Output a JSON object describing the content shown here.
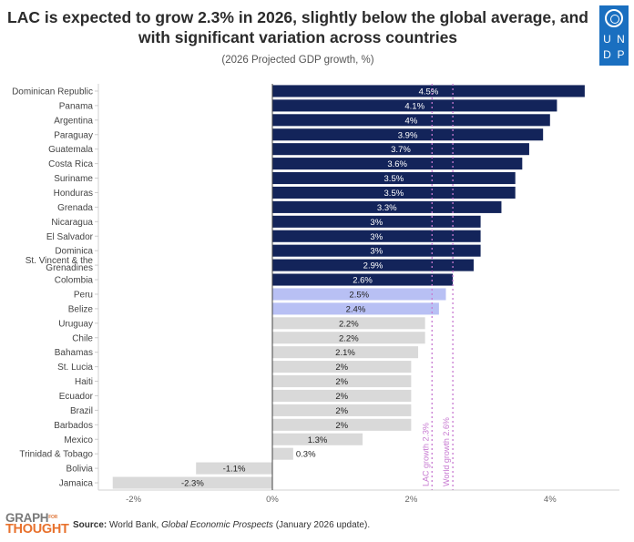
{
  "header": {
    "title_line1": "LAC is expected to grow 2.3% in 2026, slightly below the global average, and",
    "title_line2": "with significant variation across countries",
    "subtitle": "(2026 Projected GDP growth, %)"
  },
  "logo": {
    "org_letters": [
      "U",
      "N",
      "D",
      "P"
    ],
    "footer_brand_top": "GRAPH",
    "footer_brand_small": "FOR",
    "footer_brand_bottom": "THOUGHT"
  },
  "footer": {
    "source_label": "Source:",
    "source_prefix": " World Bank, ",
    "source_title": "Global Economic Prospects",
    "source_suffix": " (January 2026 update)."
  },
  "colors": {
    "above_world": "#13245a",
    "between": "#b8c0f4",
    "below_lac": "#d9d9d9",
    "reference_line": "#c77ad1",
    "label_dark_bg": "#ffffff",
    "label_light_bg": "#222222"
  },
  "chart_data": {
    "type": "bar",
    "orientation": "horizontal",
    "title": "LAC is expected to grow 2.3% in 2026, slightly below the global average, and with significant variation across countries",
    "subtitle": "(2026 Projected GDP growth, %)",
    "xlabel": "",
    "ylabel": "",
    "xlim": [
      -2.4,
      4.9
    ],
    "xticks": [
      -2,
      0,
      2,
      4
    ],
    "xtick_labels": [
      "-2%",
      "0%",
      "2%",
      "4%"
    ],
    "grid": false,
    "categories": [
      "Dominican Republic",
      "Panama",
      "Argentina",
      "Paraguay",
      "Guatemala",
      "Costa Rica",
      "Suriname",
      "Honduras",
      "Grenada",
      "Nicaragua",
      "El Salvador",
      "Dominica",
      "St. Vincent & the Grenadines",
      "Colombia",
      "Peru",
      "Belize",
      "Uruguay",
      "Chile",
      "Bahamas",
      "St. Lucia",
      "Haiti",
      "Ecuador",
      "Brazil",
      "Barbados",
      "Mexico",
      "Trinidad & Tobago",
      "Bolivia",
      "Jamaica"
    ],
    "values": [
      4.5,
      4.1,
      4.0,
      3.9,
      3.7,
      3.6,
      3.5,
      3.5,
      3.3,
      3.0,
      3.0,
      3.0,
      2.9,
      2.6,
      2.5,
      2.4,
      2.2,
      2.2,
      2.1,
      2.0,
      2.0,
      2.0,
      2.0,
      2.0,
      1.3,
      0.3,
      -1.1,
      -2.3
    ],
    "value_labels": [
      "4.5%",
      "4.1%",
      "4%",
      "3.9%",
      "3.7%",
      "3.6%",
      "3.5%",
      "3.5%",
      "3.3%",
      "3%",
      "3%",
      "3%",
      "2.9%",
      "2.6%",
      "2.5%",
      "2.4%",
      "2.2%",
      "2.2%",
      "2.1%",
      "2%",
      "2%",
      "2%",
      "2%",
      "2%",
      "1.3%",
      "0.3%",
      "-1.1%",
      "-2.3%"
    ],
    "category_labels_multiline": {
      "St. Vincent & the Grenadines": [
        "St. Vincent & the",
        "Grenadines"
      ]
    },
    "reference_lines": [
      {
        "label": "LAC growth 2.3%",
        "value": 2.3
      },
      {
        "label": "World growth 2.6%",
        "value": 2.6
      }
    ],
    "color_groups": "value >= 2.6: dark navy; 2.3 < value < 2.6: light blue; value <= 2.3: light gray"
  }
}
